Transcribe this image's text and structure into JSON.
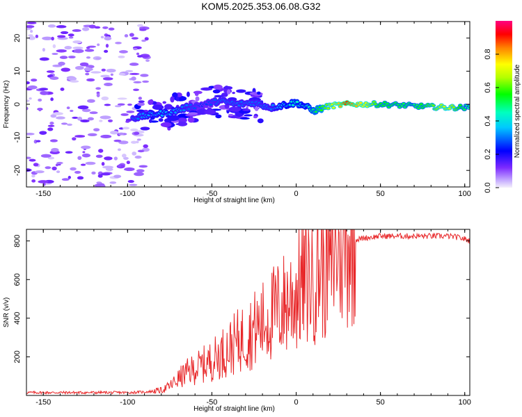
{
  "title": "KOM5.2025.353.06.08.G32",
  "chart_data": [
    {
      "type": "heatmap",
      "xlabel": "Height of straight line (km)",
      "ylabel": "Frequency (Hz)",
      "xlim": [
        -160,
        103
      ],
      "ylim": [
        -25,
        25
      ],
      "xticks": [
        -150,
        -100,
        -50,
        0,
        50,
        100
      ],
      "xtick_labels": [
        "-150",
        "-100",
        "-50",
        "0",
        "50",
        "100"
      ],
      "yticks": [
        -20,
        -10,
        0,
        10,
        20
      ],
      "ytick_labels": [
        "-20",
        "-10",
        "0",
        "10",
        "20"
      ],
      "colorbar": {
        "label": "Normalized spectral amplitude",
        "range": [
          0,
          1
        ],
        "ticks": [
          0,
          0.2,
          0.4,
          0.6,
          0.8
        ],
        "tick_labels": [
          "0.0",
          "0.2",
          "0.4",
          "0.6",
          "0.8"
        ]
      },
      "ridge": {
        "heights": [
          -95,
          -85,
          -75,
          -65,
          -55,
          -45,
          -35,
          -25,
          -15,
          -5,
          0,
          5,
          10,
          20,
          30,
          50,
          70,
          90,
          103
        ],
        "frequency": [
          -4,
          -3,
          -2.5,
          -1,
          0,
          1,
          0,
          0.5,
          -1,
          0,
          0.5,
          -0.5,
          -2,
          -0.5,
          0,
          0,
          -0.5,
          -1,
          -1
        ],
        "amplitude": [
          0.3,
          0.35,
          0.35,
          0.3,
          0.25,
          0.3,
          0.3,
          0.3,
          0.3,
          0.4,
          0.45,
          0.4,
          0.5,
          0.65,
          0.9,
          0.55,
          0.5,
          0.7,
          0.45
        ]
      }
    },
    {
      "type": "line",
      "xlabel": "Height of straight line (km)",
      "ylabel": "SNR (v/v)",
      "xlim": [
        -160,
        103
      ],
      "ylim": [
        0,
        860
      ],
      "xticks": [
        -150,
        -100,
        -50,
        0,
        50,
        100
      ],
      "xtick_labels": [
        "-150",
        "-100",
        "-50",
        "0",
        "50",
        "100"
      ],
      "yticks": [
        200,
        400,
        600,
        800
      ],
      "ytick_labels": [
        "200",
        "400",
        "600",
        "800"
      ],
      "series": [
        {
          "name": "SNR",
          "color": "#e8282a",
          "x": [
            -160,
            -140,
            -120,
            -100,
            -90,
            -80,
            -75,
            -70,
            -65,
            -60,
            -55,
            -50,
            -45,
            -40,
            -35,
            -30,
            -25,
            -20,
            -15,
            -10,
            -5,
            0,
            5,
            10,
            15,
            20,
            25,
            30,
            35,
            40,
            50,
            60,
            70,
            80,
            90,
            95,
            100,
            103
          ],
          "y": [
            15,
            15,
            15,
            15,
            18,
            25,
            45,
            80,
            110,
            130,
            150,
            170,
            200,
            230,
            260,
            290,
            320,
            350,
            390,
            420,
            460,
            500,
            560,
            600,
            640,
            690,
            740,
            780,
            805,
            815,
            825,
            825,
            825,
            825,
            825,
            820,
            810,
            800
          ]
        }
      ]
    }
  ]
}
